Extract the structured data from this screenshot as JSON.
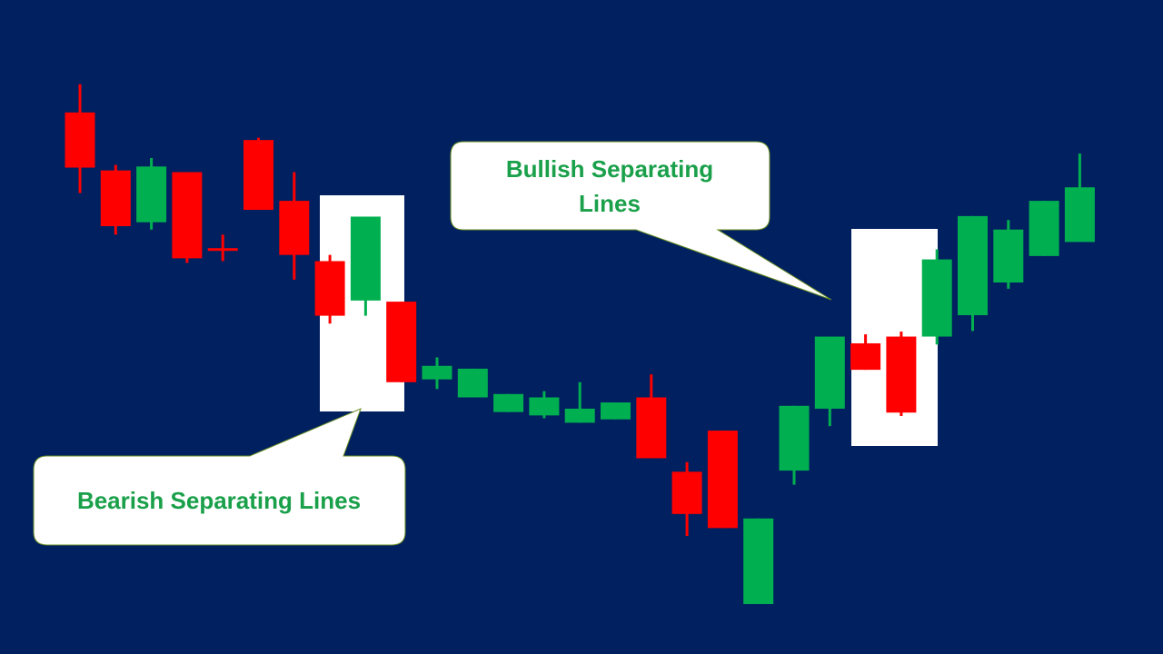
{
  "colors": {
    "background": "#002060",
    "bullish": "#00b050",
    "bearish": "#ff0000",
    "highlight_box": "#ffffff",
    "callout_text": "#1aa04a"
  },
  "callouts": {
    "bearish": {
      "label": "Bearish Separating Lines"
    },
    "bullish": {
      "label_line1": "Bullish Separating",
      "label_line2": "Lines"
    }
  },
  "chart_data": {
    "type": "candlestick",
    "title": "",
    "xlabel": "",
    "ylabel": "",
    "axes_visible": false,
    "grid": false,
    "ylim": [
      0,
      100
    ],
    "candles": [
      {
        "i": 0,
        "open": 78.3,
        "close": 88.1,
        "high": 93.1,
        "low": 73.8,
        "dir": "bear"
      },
      {
        "i": 1,
        "open": 67.9,
        "close": 77.8,
        "high": 78.8,
        "low": 66.4,
        "dir": "bear"
      },
      {
        "i": 2,
        "open": 68.6,
        "close": 78.5,
        "high": 80.0,
        "low": 67.3,
        "dir": "bull"
      },
      {
        "i": 3,
        "open": 62.2,
        "close": 77.5,
        "high": 77.5,
        "low": 61.4,
        "dir": "bear"
      },
      {
        "i": 4,
        "open": 64.0,
        "close": 64.0,
        "high": 66.4,
        "low": 61.7,
        "dir": "bear"
      },
      {
        "i": 5,
        "open": 70.8,
        "close": 83.2,
        "high": 83.6,
        "low": 70.8,
        "dir": "bear"
      },
      {
        "i": 6,
        "open": 62.8,
        "close": 72.4,
        "high": 77.5,
        "low": 58.4,
        "dir": "bear"
      },
      {
        "i": 7,
        "open": 52.0,
        "close": 61.7,
        "high": 62.8,
        "low": 50.6,
        "dir": "bear"
      },
      {
        "i": 8,
        "open": 54.7,
        "close": 69.6,
        "high": 69.6,
        "low": 52.0,
        "dir": "bull"
      },
      {
        "i": 9,
        "open": 40.2,
        "close": 54.5,
        "high": 54.5,
        "low": 40.2,
        "dir": "bear"
      },
      {
        "i": 10,
        "open": 40.7,
        "close": 43.1,
        "high": 44.6,
        "low": 39.0,
        "dir": "bull"
      },
      {
        "i": 11,
        "open": 37.5,
        "close": 42.6,
        "high": 42.6,
        "low": 37.5,
        "dir": "bull"
      },
      {
        "i": 12,
        "open": 34.9,
        "close": 38.1,
        "high": 38.1,
        "low": 34.9,
        "dir": "bull"
      },
      {
        "i": 13,
        "open": 34.3,
        "close": 37.5,
        "high": 38.6,
        "low": 33.8,
        "dir": "bull"
      },
      {
        "i": 14,
        "open": 33.0,
        "close": 35.5,
        "high": 40.2,
        "low": 33.0,
        "dir": "bull"
      },
      {
        "i": 15,
        "open": 33.6,
        "close": 36.6,
        "high": 36.6,
        "low": 33.6,
        "dir": "bull"
      },
      {
        "i": 16,
        "open": 26.7,
        "close": 37.5,
        "high": 41.6,
        "low": 26.7,
        "dir": "bear"
      },
      {
        "i": 17,
        "open": 16.8,
        "close": 24.3,
        "high": 26.0,
        "low": 12.9,
        "dir": "bear"
      },
      {
        "i": 18,
        "open": 14.3,
        "close": 31.6,
        "high": 31.6,
        "low": 14.3,
        "dir": "bear"
      },
      {
        "i": 19,
        "open": 0.8,
        "close": 16.0,
        "high": 16.0,
        "low": 0.8,
        "dir": "bull"
      },
      {
        "i": 20,
        "open": 24.5,
        "close": 36.0,
        "high": 36.0,
        "low": 22.0,
        "dir": "bull"
      },
      {
        "i": 21,
        "open": 35.5,
        "close": 48.3,
        "high": 48.3,
        "low": 32.4,
        "dir": "bull"
      },
      {
        "i": 22,
        "open": 42.4,
        "close": 47.1,
        "high": 48.7,
        "low": 42.4,
        "dir": "bear"
      },
      {
        "i": 23,
        "open": 34.8,
        "close": 48.3,
        "high": 49.2,
        "low": 34.2,
        "dir": "bear"
      },
      {
        "i": 24,
        "open": 48.3,
        "close": 62.0,
        "high": 63.8,
        "low": 46.9,
        "dir": "bull"
      },
      {
        "i": 25,
        "open": 52.1,
        "close": 69.7,
        "high": 69.7,
        "low": 49.3,
        "dir": "bull"
      },
      {
        "i": 26,
        "open": 57.9,
        "close": 67.3,
        "high": 69.0,
        "low": 56.8,
        "dir": "bull"
      },
      {
        "i": 27,
        "open": 62.6,
        "close": 72.4,
        "high": 72.4,
        "low": 62.6,
        "dir": "bull"
      },
      {
        "i": 28,
        "open": 65.1,
        "close": 74.8,
        "high": 80.8,
        "low": 65.1,
        "dir": "bull"
      }
    ],
    "highlight_groups": [
      {
        "name": "Bearish Separating Lines",
        "candles": [
          8,
          9
        ]
      },
      {
        "name": "Bullish Separating Lines",
        "candles": [
          23,
          24
        ]
      }
    ]
  }
}
